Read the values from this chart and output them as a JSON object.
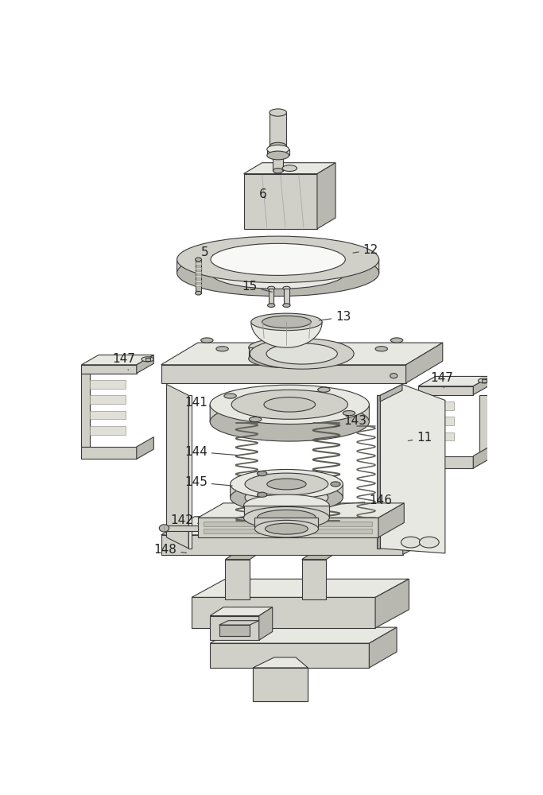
{
  "bg_color": "#f5f5f0",
  "line_color": "#3a3a3a",
  "fill_light": "#e8e8e2",
  "fill_mid": "#d0d0c8",
  "fill_dark": "#b8b8b0",
  "fill_darker": "#a0a09a",
  "label_fontsize": 11,
  "label_color": "#222222",
  "line_width": 0.8
}
